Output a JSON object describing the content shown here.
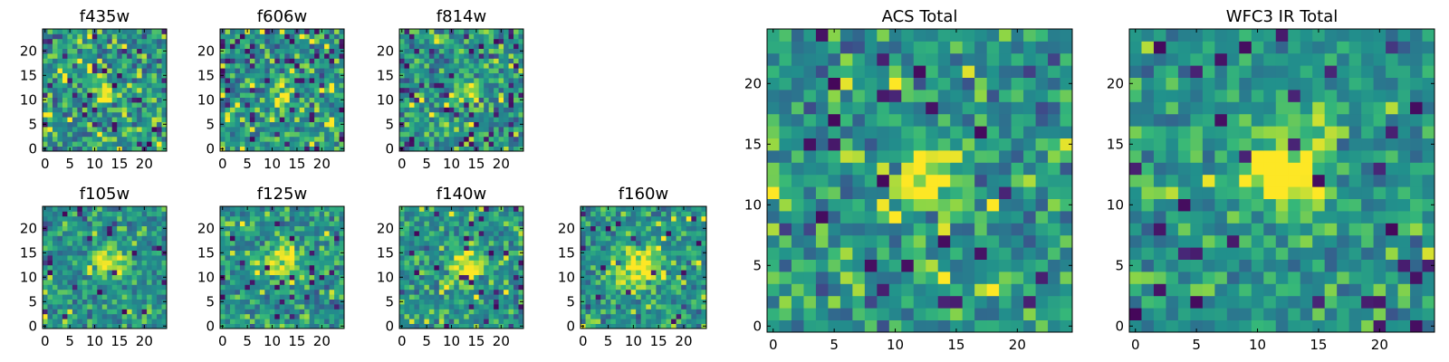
{
  "chart_data": [
    {
      "type": "heatmap",
      "title": "f435w",
      "colormap": "viridis",
      "xlim": [
        -0.5,
        24.5
      ],
      "ylim": [
        -0.5,
        24.5
      ],
      "xticks": [
        0,
        5,
        10,
        15,
        20
      ],
      "yticks": [
        0,
        5,
        10,
        15,
        20
      ],
      "grid_size": [
        25,
        25
      ],
      "source_peak": [
        12,
        12
      ],
      "source_amplitude": 0.25,
      "source_sigma": 2.0,
      "noise_level": 1.0,
      "dark_outlier_fraction": 0.06,
      "seed": 11
    },
    {
      "type": "heatmap",
      "title": "f606w",
      "colormap": "viridis",
      "xlim": [
        -0.5,
        24.5
      ],
      "ylim": [
        -0.5,
        24.5
      ],
      "xticks": [
        0,
        5,
        10,
        15,
        20
      ],
      "yticks": [
        0,
        5,
        10,
        15,
        20
      ],
      "grid_size": [
        25,
        25
      ],
      "source_peak": [
        12,
        11
      ],
      "source_amplitude": 0.3,
      "source_sigma": 2.0,
      "noise_level": 1.0,
      "dark_outlier_fraction": 0.05,
      "seed": 23
    },
    {
      "type": "heatmap",
      "title": "f814w",
      "colormap": "viridis",
      "xlim": [
        -0.5,
        24.5
      ],
      "ylim": [
        -0.5,
        24.5
      ],
      "xticks": [
        0,
        5,
        10,
        15,
        20
      ],
      "yticks": [
        0,
        5,
        10,
        15,
        20
      ],
      "grid_size": [
        25,
        25
      ],
      "source_peak": [
        13,
        11
      ],
      "source_amplitude": 0.3,
      "source_sigma": 2.0,
      "noise_level": 1.0,
      "dark_outlier_fraction": 0.05,
      "seed": 37
    },
    {
      "type": "heatmap",
      "title": "f105w",
      "colormap": "viridis",
      "xlim": [
        -0.5,
        24.5
      ],
      "ylim": [
        -0.5,
        24.5
      ],
      "xticks": [
        0,
        5,
        10,
        15,
        20
      ],
      "yticks": [
        0,
        5,
        10,
        15,
        20
      ],
      "grid_size": [
        25,
        25
      ],
      "source_peak": [
        13,
        13
      ],
      "source_amplitude": 0.45,
      "source_sigma": 2.4,
      "noise_level": 0.8,
      "dark_outlier_fraction": 0.03,
      "seed": 41
    },
    {
      "type": "heatmap",
      "title": "f125w",
      "colormap": "viridis",
      "xlim": [
        -0.5,
        24.5
      ],
      "ylim": [
        -0.5,
        24.5
      ],
      "xticks": [
        0,
        5,
        10,
        15,
        20
      ],
      "yticks": [
        0,
        5,
        10,
        15,
        20
      ],
      "grid_size": [
        25,
        25
      ],
      "source_peak": [
        12,
        13
      ],
      "source_amplitude": 0.4,
      "source_sigma": 2.6,
      "noise_level": 0.8,
      "dark_outlier_fraction": 0.03,
      "seed": 53
    },
    {
      "type": "heatmap",
      "title": "f140w",
      "colormap": "viridis",
      "xlim": [
        -0.5,
        24.5
      ],
      "ylim": [
        -0.5,
        24.5
      ],
      "xticks": [
        0,
        5,
        10,
        15,
        20
      ],
      "yticks": [
        0,
        5,
        10,
        15,
        20
      ],
      "grid_size": [
        25,
        25
      ],
      "source_peak": [
        13,
        12
      ],
      "source_amplitude": 0.45,
      "source_sigma": 2.6,
      "noise_level": 0.8,
      "dark_outlier_fraction": 0.03,
      "seed": 67
    },
    {
      "type": "heatmap",
      "title": "f160w",
      "colormap": "viridis",
      "xlim": [
        -0.5,
        24.5
      ],
      "ylim": [
        -0.5,
        24.5
      ],
      "xticks": [
        0,
        5,
        10,
        15,
        20
      ],
      "yticks": [
        0,
        5,
        10,
        15,
        20
      ],
      "grid_size": [
        25,
        25
      ],
      "source_peak": [
        11,
        12
      ],
      "source_amplitude": 0.5,
      "source_sigma": 2.8,
      "noise_level": 0.8,
      "dark_outlier_fraction": 0.03,
      "seed": 79
    },
    {
      "type": "heatmap",
      "title": "ACS Total",
      "colormap": "viridis",
      "xlim": [
        -0.5,
        24.5
      ],
      "ylim": [
        -0.5,
        24.5
      ],
      "xticks": [
        0,
        5,
        10,
        15,
        20
      ],
      "yticks": [
        0,
        5,
        10,
        15,
        20
      ],
      "grid_size": [
        25,
        25
      ],
      "source_peak": [
        13,
        12
      ],
      "source_amplitude": 0.45,
      "source_sigma": 2.0,
      "noise_level": 0.9,
      "dark_outlier_fraction": 0.04,
      "seed": 97
    },
    {
      "type": "heatmap",
      "title": "WFC3 IR Total",
      "colormap": "viridis",
      "xlim": [
        -0.5,
        24.5
      ],
      "ylim": [
        -0.5,
        24.5
      ],
      "xticks": [
        0,
        5,
        10,
        15,
        20
      ],
      "yticks": [
        0,
        5,
        10,
        15,
        20
      ],
      "grid_size": [
        25,
        25
      ],
      "source_peak": [
        12,
        13
      ],
      "source_amplitude": 0.5,
      "source_sigma": 2.4,
      "noise_level": 0.7,
      "dark_outlier_fraction": 0.04,
      "seed": 113
    }
  ]
}
